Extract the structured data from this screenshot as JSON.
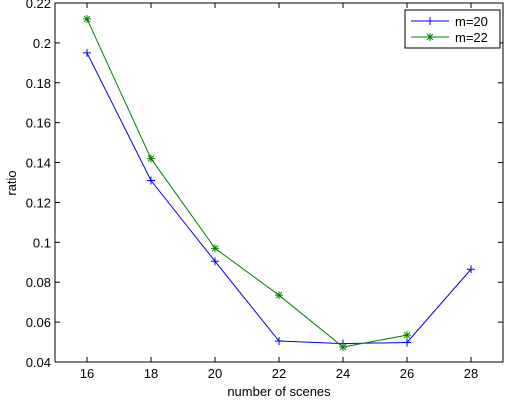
{
  "chart_data": {
    "type": "line",
    "title": "",
    "xlabel": "number of scenes",
    "ylabel": "ratio",
    "xlim": [
      15,
      29
    ],
    "ylim": [
      0.04,
      0.22
    ],
    "xticks": [
      16,
      18,
      20,
      22,
      24,
      26,
      28
    ],
    "yticks": [
      0.04,
      0.06,
      0.08,
      0.1,
      0.12,
      0.14,
      0.16,
      0.18,
      0.2,
      0.22
    ],
    "xtick_labels": [
      "16",
      "18",
      "20",
      "22",
      "24",
      "26",
      "28"
    ],
    "ytick_labels": [
      "0.04",
      "0.06",
      "0.08",
      "0.1",
      "0.12",
      "0.14",
      "0.16",
      "0.18",
      "0.2",
      "0.22"
    ],
    "grid": false,
    "legend_position": "top-right",
    "series": [
      {
        "name": "m=20",
        "color": "#0000ff",
        "marker": "plus",
        "x": [
          16,
          18,
          20,
          22,
          24,
          26,
          28
        ],
        "y": [
          0.195,
          0.131,
          0.0905,
          0.0505,
          0.0492,
          0.0498,
          0.0865
        ]
      },
      {
        "name": "m=22",
        "color": "#008000",
        "marker": "asterisk",
        "x": [
          16,
          18,
          20,
          22,
          24,
          26
        ],
        "y": [
          0.212,
          0.142,
          0.097,
          0.0735,
          0.0475,
          0.0535
        ]
      }
    ]
  }
}
